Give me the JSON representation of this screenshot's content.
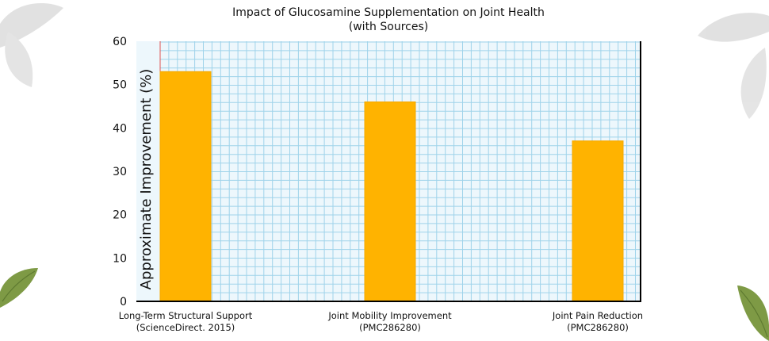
{
  "chart_data": {
    "type": "bar",
    "title": "Impact of Glucosamine Supplementation on Joint Health",
    "subtitle": "(with Sources)",
    "xlabel": "",
    "ylabel": "Approximate Improvement (%)",
    "ylim": [
      0,
      60
    ],
    "yticks": [
      "0",
      "10",
      "20",
      "30",
      "40",
      "50",
      "60"
    ],
    "grid": true,
    "categories": [
      {
        "line1": "Long-Term Structural Support",
        "line2": "(ScienceDirect. 2015)"
      },
      {
        "line1": "Joint Mobility Improvement",
        "line2": "(PMC286280)"
      },
      {
        "line1": "Joint Pain Reduction",
        "line2": "(PMC286280)"
      }
    ],
    "values": [
      53,
      46,
      37
    ],
    "colors": {
      "bar": "#FFB300",
      "bar_edge": "#F5A800",
      "grid": "#9FD3EA",
      "plot_bg": "#EDF7FC",
      "margin_line": "#E05555",
      "axis": "#000000",
      "leaf": "#7E9A45"
    }
  }
}
